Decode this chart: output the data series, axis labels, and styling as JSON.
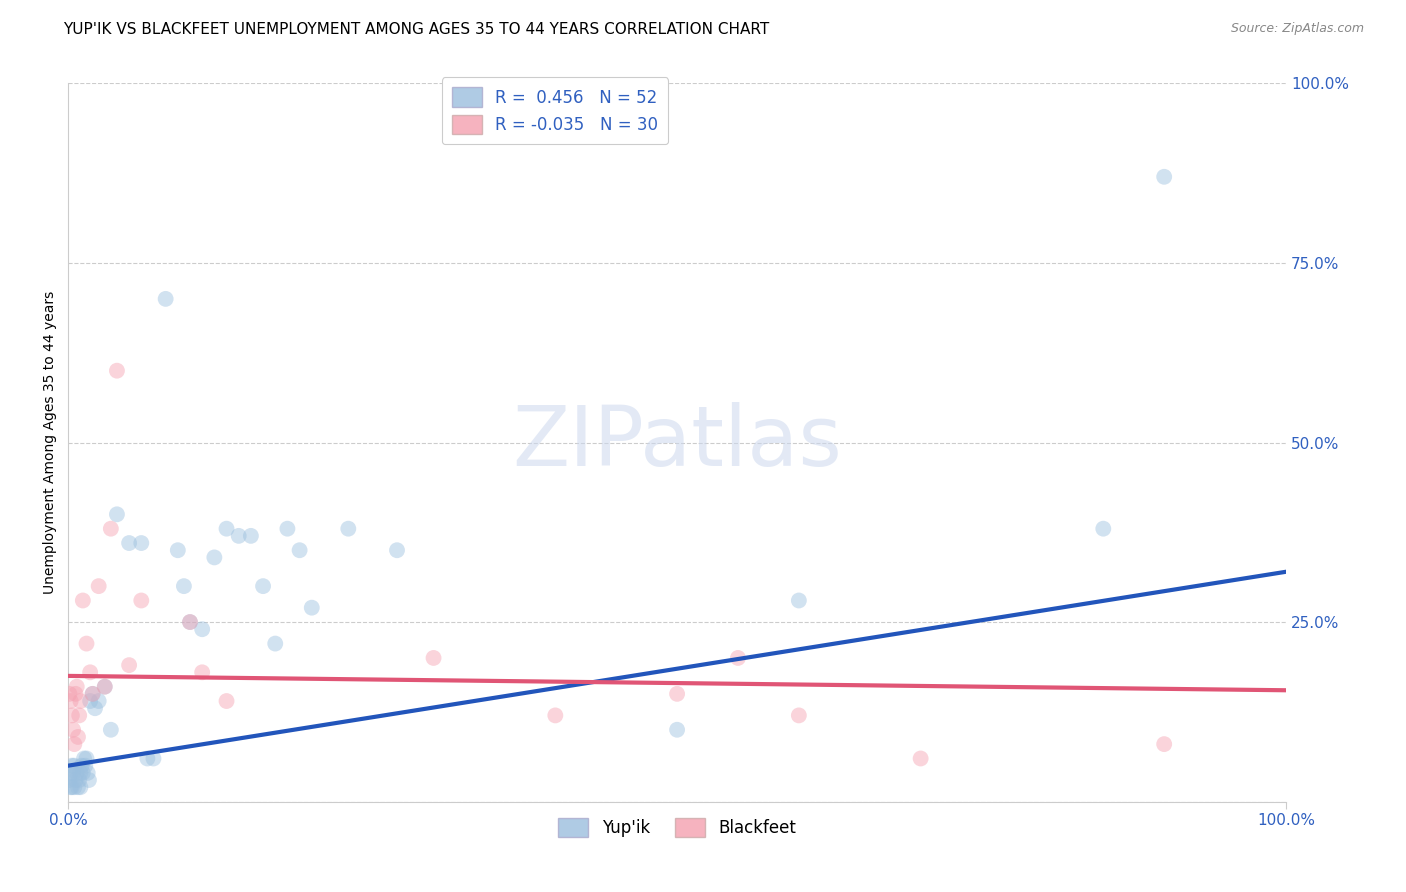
{
  "title": "YUP'IK VS BLACKFEET UNEMPLOYMENT AMONG AGES 35 TO 44 YEARS CORRELATION CHART",
  "source": "Source: ZipAtlas.com",
  "ylabel": "Unemployment Among Ages 35 to 44 years",
  "background_color": "#ffffff",
  "watermark": "ZIPatlas",
  "yup_ik_color": "#9bbfde",
  "blackfeet_color": "#f4a0b0",
  "yup_ik_line_color": "#2255bb",
  "blackfeet_line_color": "#e05575",
  "R_yupik": 0.456,
  "N_yupik": 52,
  "R_blackfeet": -0.035,
  "N_blackfeet": 30,
  "yup_ik_x": [
    0.001,
    0.002,
    0.002,
    0.003,
    0.003,
    0.004,
    0.005,
    0.005,
    0.006,
    0.007,
    0.008,
    0.009,
    0.01,
    0.01,
    0.011,
    0.012,
    0.013,
    0.014,
    0.015,
    0.016,
    0.017,
    0.018,
    0.02,
    0.022,
    0.025,
    0.03,
    0.035,
    0.04,
    0.05,
    0.06,
    0.065,
    0.07,
    0.08,
    0.09,
    0.095,
    0.1,
    0.11,
    0.12,
    0.13,
    0.14,
    0.15,
    0.16,
    0.17,
    0.18,
    0.19,
    0.2,
    0.23,
    0.27,
    0.5,
    0.6,
    0.85,
    0.9
  ],
  "yup_ik_y": [
    0.03,
    0.04,
    0.02,
    0.05,
    0.02,
    0.04,
    0.05,
    0.02,
    0.03,
    0.04,
    0.02,
    0.03,
    0.04,
    0.02,
    0.05,
    0.04,
    0.06,
    0.05,
    0.06,
    0.04,
    0.03,
    0.14,
    0.15,
    0.13,
    0.14,
    0.16,
    0.1,
    0.4,
    0.36,
    0.36,
    0.06,
    0.06,
    0.7,
    0.35,
    0.3,
    0.25,
    0.24,
    0.34,
    0.38,
    0.37,
    0.37,
    0.3,
    0.22,
    0.38,
    0.35,
    0.27,
    0.38,
    0.35,
    0.1,
    0.28,
    0.38,
    0.87
  ],
  "blackfeet_x": [
    0.001,
    0.002,
    0.003,
    0.004,
    0.005,
    0.006,
    0.007,
    0.008,
    0.009,
    0.01,
    0.012,
    0.015,
    0.018,
    0.02,
    0.025,
    0.03,
    0.035,
    0.04,
    0.05,
    0.06,
    0.1,
    0.11,
    0.13,
    0.3,
    0.4,
    0.5,
    0.55,
    0.6,
    0.7,
    0.9
  ],
  "blackfeet_y": [
    0.15,
    0.14,
    0.12,
    0.1,
    0.08,
    0.15,
    0.16,
    0.09,
    0.12,
    0.14,
    0.28,
    0.22,
    0.18,
    0.15,
    0.3,
    0.16,
    0.38,
    0.6,
    0.19,
    0.28,
    0.25,
    0.18,
    0.14,
    0.2,
    0.12,
    0.15,
    0.2,
    0.12,
    0.06,
    0.08
  ],
  "xlim": [
    0.0,
    1.0
  ],
  "ylim": [
    0.0,
    1.0
  ],
  "xtick_positions": [
    0.0,
    1.0
  ],
  "xticklabels": [
    "0.0%",
    "100.0%"
  ],
  "ytick_positions": [
    0.0,
    0.25,
    0.5,
    0.75,
    1.0
  ],
  "yticklabels_right": [
    "",
    "25.0%",
    "50.0%",
    "75.0%",
    "100.0%"
  ],
  "grid_color": "#cccccc",
  "title_fontsize": 11,
  "axis_label_fontsize": 10,
  "tick_fontsize": 11,
  "marker_size": 130,
  "marker_alpha": 0.45,
  "line_width": 3.0
}
